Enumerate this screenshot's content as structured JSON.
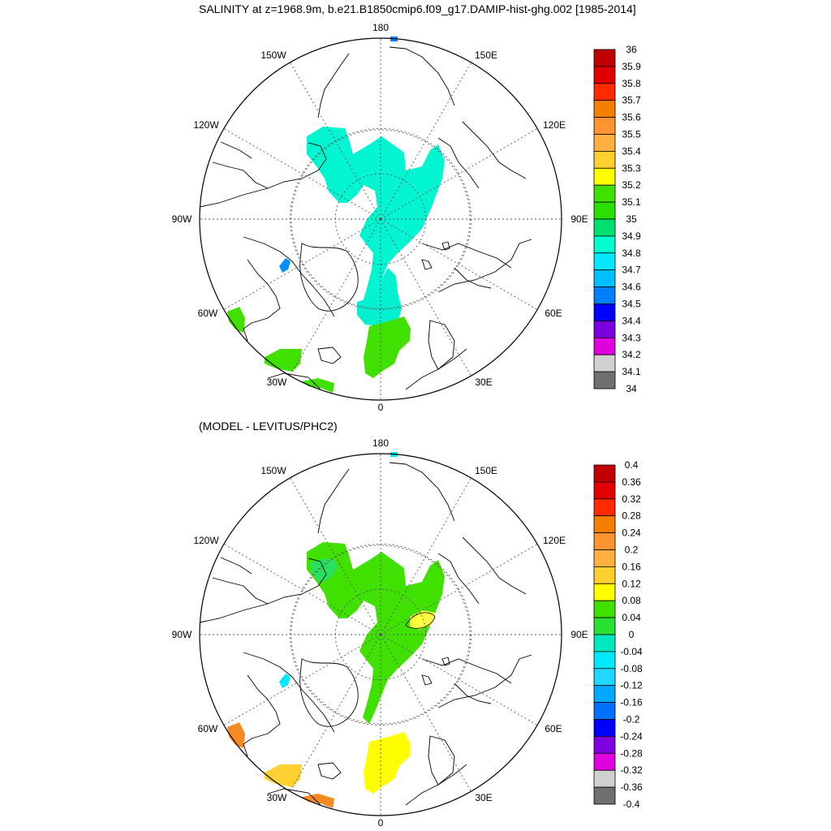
{
  "header": {
    "title": "SALINITY at z=1968.9m, b.e21.B1850cmip6.f09_g17.DAMIP-hist-ghg.002 [1985-2014]"
  },
  "panel_bottom": {
    "title": "(MODEL - LEVITUS/PHC2)"
  },
  "longitude_labels": [
    "180",
    "150E",
    "120E",
    "90E",
    "60E",
    "30E",
    "0",
    "30W",
    "60W",
    "90W",
    "120W",
    "150W"
  ],
  "colors": {
    "land_outline": "#000000",
    "grid": "#555555"
  },
  "top_map": {
    "colorbar": {
      "labels": [
        "36",
        "35.9",
        "35.8",
        "35.7",
        "35.6",
        "35.5",
        "35.4",
        "35.3",
        "35.2",
        "35.1",
        "35",
        "34.9",
        "34.8",
        "34.7",
        "34.6",
        "34.5",
        "34.4",
        "34.3",
        "34.2",
        "34.1",
        "34"
      ],
      "colors": [
        "#c00000",
        "#e00000",
        "#ff2a00",
        "#f57f00",
        "#ff9430",
        "#ffb040",
        "#ffd030",
        "#ffff00",
        "#40e000",
        "#2ae000",
        "#00e070",
        "#00ffd0",
        "#00e8ff",
        "#00c0ff",
        "#0080ff",
        "#0000ff",
        "#7a00e0",
        "#e000e0",
        "#d0d0d0",
        "#707070"
      ]
    },
    "fields": [
      {
        "region": "central-arctic-ridge",
        "color": "#00f5d0"
      },
      {
        "region": "fram-strait",
        "color": "#00f0d0"
      },
      {
        "region": "greenland-norwegian-seas",
        "color": "#40e000"
      },
      {
        "region": "irminger-sea",
        "color": "#40e000"
      },
      {
        "region": "iceland-basin",
        "color": "#40e000"
      },
      {
        "region": "labrador-sea",
        "color": "#40e000"
      },
      {
        "region": "baffin-bay",
        "color": "#0090ff"
      },
      {
        "region": "north-pacific",
        "color": "#0080ff"
      }
    ]
  },
  "bottom_map": {
    "colorbar": {
      "labels": [
        "0.4",
        "0.36",
        "0.32",
        "0.28",
        "0.24",
        "0.2",
        "0.16",
        "0.12",
        "0.08",
        "0.04",
        "0",
        "-0.04",
        "-0.08",
        "-0.12",
        "-0.16",
        "-0.2",
        "-0.24",
        "-0.28",
        "-0.32",
        "-0.36",
        "-0.4"
      ],
      "colors": [
        "#c00000",
        "#e00000",
        "#ff2a00",
        "#f57f00",
        "#ff9430",
        "#ffb040",
        "#ffd030",
        "#ffff00",
        "#40e000",
        "#2ae030",
        "#00e8c0",
        "#00e8ff",
        "#20d8ff",
        "#00a8ff",
        "#0070ff",
        "#0000ff",
        "#8000e0",
        "#e000e0",
        "#d0d0d0",
        "#707070"
      ]
    },
    "fields": [
      {
        "region": "central-arctic-ridge",
        "color": "#40e000"
      },
      {
        "region": "canada-basin-patch",
        "color": "#2ae060"
      },
      {
        "region": "nansen-basin-patch",
        "color": "#ffff40"
      },
      {
        "region": "greenland-norwegian-seas",
        "color": "#ffff00"
      },
      {
        "region": "irminger-sea",
        "color": "#ffd030"
      },
      {
        "region": "iceland-basin",
        "color": "#f58a20"
      },
      {
        "region": "labrador-sea",
        "color": "#f58a20"
      },
      {
        "region": "baffin-bay",
        "color": "#00e8ff"
      },
      {
        "region": "north-pacific",
        "color": "#00e8ff"
      }
    ]
  }
}
